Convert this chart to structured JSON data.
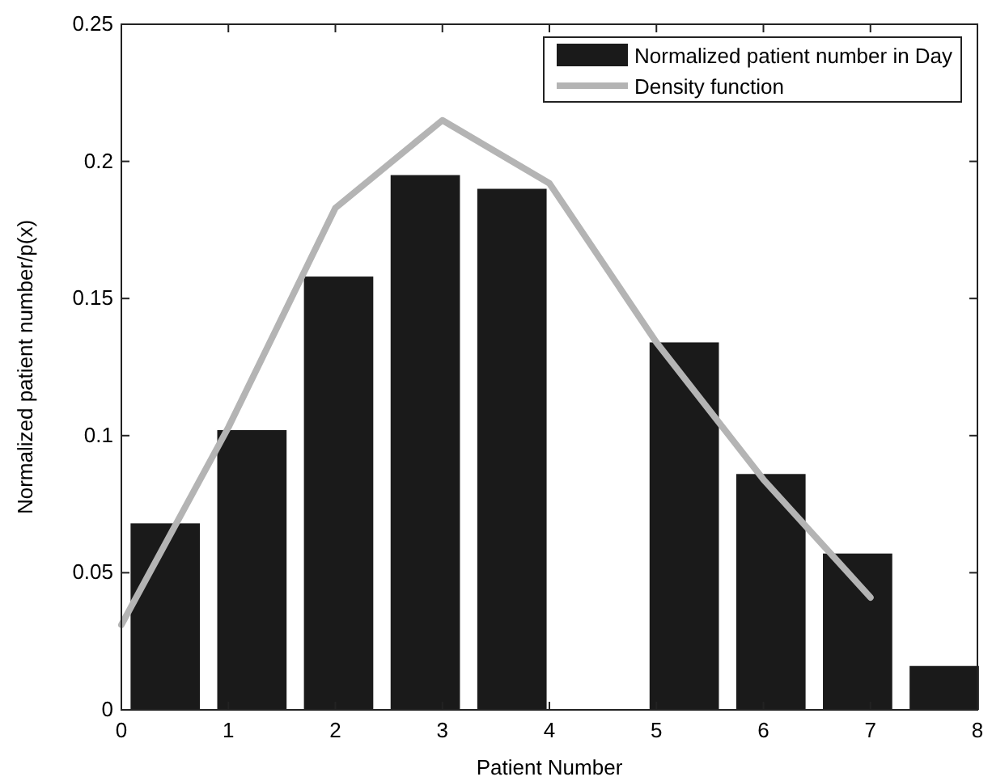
{
  "chart_data": {
    "type": "bar",
    "xlabel": "Patient Number",
    "ylabel": "Normalized patient number/p(x)",
    "xlim": [
      0,
      8
    ],
    "xticks": [
      0,
      1,
      2,
      3,
      4,
      5,
      6,
      7,
      8
    ],
    "ylim": [
      0,
      0.25
    ],
    "yticks": [
      0,
      0.05,
      0.1,
      0.15,
      0.2,
      0.25
    ],
    "legend": "top right",
    "grid": false,
    "series": [
      {
        "name": "Normalized patient number in Day",
        "color": "#1a1a1a",
        "x": [
          0.41,
          1.22,
          2.03,
          2.84,
          3.65,
          5.26,
          6.07,
          6.88,
          7.69
        ],
        "values": [
          0.068,
          0.102,
          0.158,
          0.195,
          0.19,
          0.134,
          0.086,
          0.057,
          0.016
        ]
      },
      {
        "name": "Density function",
        "type": "line",
        "color": "#b4b4b4",
        "x": [
          0,
          1,
          2,
          3,
          4,
          5,
          6,
          7
        ],
        "values": [
          0.031,
          0.103,
          0.183,
          0.215,
          0.192,
          0.134,
          0.084,
          0.041
        ]
      }
    ]
  }
}
